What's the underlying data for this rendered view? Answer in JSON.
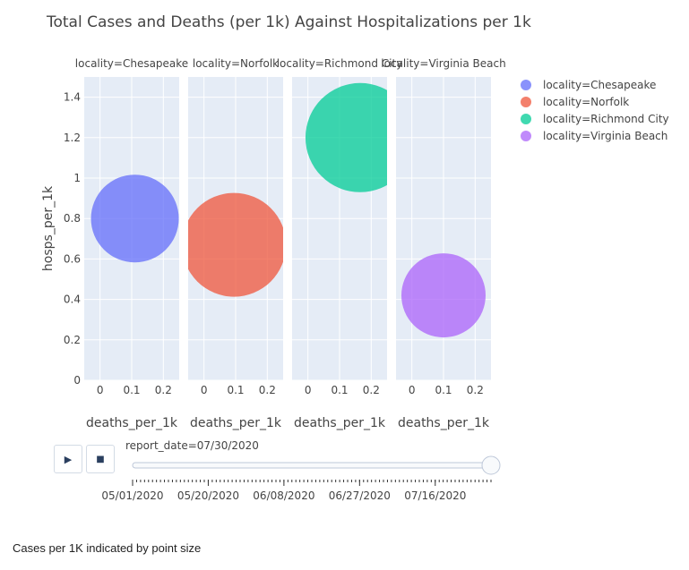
{
  "chart_data": {
    "type": "scatter",
    "title": "Total Cases and Deaths (per 1k) Against Hospitalizations per 1k",
    "xlabel": "deaths_per_1k",
    "ylabel": "hosps_per_1k",
    "xlim": [
      -0.05,
      0.25
    ],
    "ylim": [
      0,
      1.5
    ],
    "x_ticks": [
      0,
      0.1,
      0.2
    ],
    "x_tick_labels": [
      "0",
      "0.1",
      "0.2"
    ],
    "y_ticks": [
      0,
      0.2,
      0.4,
      0.6,
      0.8,
      1,
      1.2,
      1.4
    ],
    "y_tick_labels": [
      "0",
      "0.2",
      "0.4",
      "0.6",
      "0.8",
      "1",
      "1.2",
      "1.4"
    ],
    "grid": true,
    "legend_position": "right",
    "size_note": "Cases per 1K indicated by point size",
    "series": [
      {
        "name": "locality=Chesapeake",
        "facet_title": "locality=Chesapeake",
        "color": "#636efa",
        "x": 0.11,
        "y": 0.8
      },
      {
        "name": "locality=Norfolk",
        "facet_title": "locality=Norfolk",
        "color": "#ef553b",
        "x": 0.095,
        "y": 0.67
      },
      {
        "name": "locality=Richmond City",
        "facet_title": "locality=Richmond City",
        "color": "#00cc96",
        "x": 0.165,
        "y": 1.2
      },
      {
        "name": "locality=Virginia Beach",
        "facet_title": "locality=Virginia Beach",
        "color": "#ab63fa",
        "x": 0.1,
        "y": 0.42
      }
    ]
  },
  "animation": {
    "play_icon": "play-icon",
    "stop_icon": "stop-icon",
    "current_label": "report_date=07/30/2020",
    "progress": 1.0,
    "date_labels": [
      "05/01/2020",
      "05/20/2020",
      "06/08/2020",
      "06/27/2020",
      "07/16/2020"
    ],
    "date_label_positions": [
      0,
      19,
      38,
      57,
      76
    ],
    "total_steps": 91
  }
}
